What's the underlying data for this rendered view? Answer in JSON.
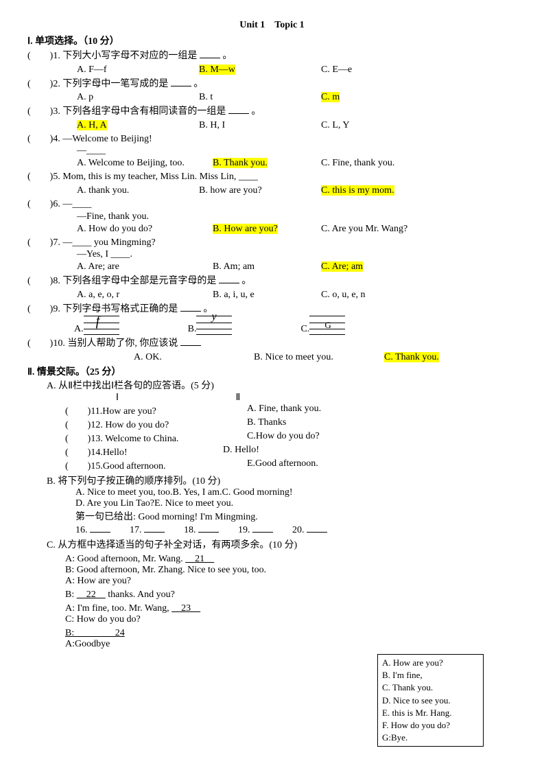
{
  "title": "Unit 1　Topic 1",
  "section1": {
    "heading": "Ⅰ. 单项选择。（10 分）",
    "q1": {
      "prefix": "(　　)1.",
      "text": "下列大小写字母不对应的一组是",
      "suffix": "。",
      "a": "A. F—f",
      "b": "B. M—w",
      "c": "C. E—e",
      "hl": "b"
    },
    "q2": {
      "prefix": "(　　)2.",
      "text": "下列字母中一笔写成的是",
      "suffix": "。",
      "a": "A. p",
      "b": "B. t",
      "c": "C. m",
      "hl": "c"
    },
    "q3": {
      "prefix": "(　　)3.",
      "text": "下列各组字母中含有相同读音的一组是",
      "suffix": "。",
      "a": "A. H, A",
      "b": "B. H, I",
      "c": "C. L, Y",
      "hl": "a"
    },
    "q4": {
      "prefix": "(　　)4.",
      "text": "—Welcome to Beijing!",
      "line2": "—____",
      "a": "A. Welcome to Beijing, too.",
      "b": "B. Thank you.",
      "c": "C. Fine, thank you.",
      "hl": "b"
    },
    "q5": {
      "prefix": "(　　)5.",
      "text": "Mom, this is my teacher, Miss Lin. Miss Lin, ____",
      "a": "A. thank you.",
      "b": "B. how are you?",
      "c": "C. this is my mom.",
      "hl": "c"
    },
    "q6": {
      "prefix": "(　　)6.",
      "text": "—____",
      "line2": "—Fine, thank you.",
      "a": "A. How do you do?",
      "b": "B. How are you?",
      "c": "C. Are you Mr. Wang?",
      "hl": "b"
    },
    "q7": {
      "prefix": "(　　)7.",
      "text": "—____ you Mingming?",
      "line2": "—Yes, I ____.",
      "a": "A. Are; are",
      "b": "B. Am; am",
      "c": "C. Are; am",
      "hl": "c"
    },
    "q8": {
      "prefix": "(　　)8.",
      "text": " 下列各组字母中全部是元音字母的是",
      "suffix": "。",
      "a": "A. a, e, o, r",
      "b": "B. a, i, u, e",
      "c": "C. o, u, e, n"
    },
    "q9": {
      "prefix": "(　　)9.",
      "text": "下列字母书写格式正确的是",
      "suffix": "。"
    },
    "q10": {
      "prefix": "(　　)10.",
      "text": " 当别人帮助了你, 你应该说",
      "a": "A. OK.",
      "b": "B. Nice to meet you.",
      "c": "C. Thank you.",
      "hl": "c"
    }
  },
  "section2": {
    "heading": "Ⅱ. 情景交际。（25 分）",
    "partA": {
      "title": "A.  从Ⅱ栏中找出Ⅰ栏各句的应答语。(5 分)",
      "colI": "Ⅰ",
      "colII": "Ⅱ",
      "rows": [
        {
          "l": "(　　)11.How are you?",
          "r": " A. Fine, thank you."
        },
        {
          "l": "(　　)12. How do you do?",
          "r": "B. Thanks"
        },
        {
          "l": "(　　)13. Welcome to China.",
          "r": "C.How do you do?"
        },
        {
          "l": "(　　)14.Hello!",
          "r": "D. Hello!"
        },
        {
          "l": "(　　)15.Good afternoon.",
          "r": "E.Good afternoon."
        }
      ]
    },
    "partB": {
      "title": "B.  将下列句子按正确的顺序排列。(10 分)",
      "line1": "A. Nice to meet you, too.B. Yes, I am.C. Good morning!",
      "line2": "D. Are you Lin Tao?E. Nice to meet you.",
      "line3": "第一句已给出: Good morning! I'm Mingming.",
      "fills": [
        "16.",
        "17.",
        "18.",
        "19.",
        "20."
      ]
    },
    "partC": {
      "title": "C.  从方框中选择适当的句子补全对话，有两项多余。(10 分)",
      "lines": [
        "A: Good afternoon, Mr. Wang.  　21　",
        "B: Good afternoon, Mr. Zhang. Nice to see you, too.",
        "A: How are you?",
        "B: 　22　 thanks. And you?",
        "A: I'm fine, too. Mr. Wang, 　23　",
        "C: How do you do?",
        "B: 　　　　24",
        "A:Goodbye"
      ],
      "box": [
        "A. How are you?",
        "B. I'm fine,",
        "C. Thank you.",
        "D. Nice to see you.",
        "E. this is Mr. Hang.",
        "F. How do you do?",
        "G:Bye."
      ]
    }
  }
}
